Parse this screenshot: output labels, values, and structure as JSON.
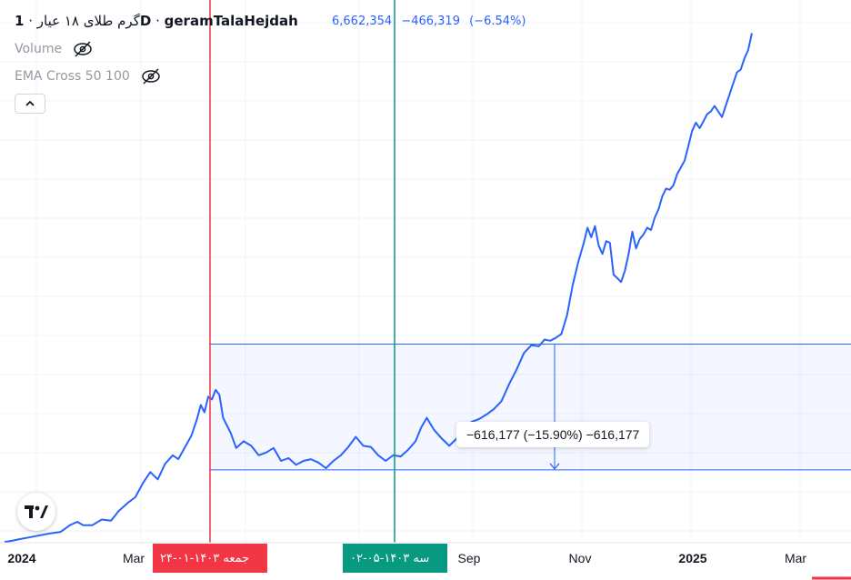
{
  "header": {
    "title_prefix": "گرم طلای ۱۸ عیار",
    "separator": "·",
    "interval": "1D",
    "symbol": "geramTalaHejdah",
    "last_price": "6,662,354",
    "change": "−466,319",
    "change_percent": "(−6.54%)"
  },
  "indicators": [
    {
      "label": "Volume",
      "icon": "eye-off-icon"
    },
    {
      "label": "EMA Cross 50 100",
      "icon": "eye-off-icon"
    }
  ],
  "collapse_icon": "chevron-up-icon",
  "measure": {
    "label": "−616,177 (−15.90%) −616,177"
  },
  "markers": {
    "red_label": "جمعه ۱۴۰۳-۰۱-۲۴",
    "green_label": "سه ۱۴۰۳-۰۵-۰۲",
    "red_color": "#f23645",
    "green_color": "#089981"
  },
  "colors": {
    "series": "#2962ff",
    "measure_fill": "#2962ff",
    "grid": "#f0f3fa"
  },
  "chart_data": {
    "type": "line",
    "title": "",
    "xlabel": "",
    "ylabel": "",
    "x_tick_labels": [
      "2024",
      "Mar",
      "Sep",
      "Nov",
      "2025",
      "Mar"
    ],
    "grid": true,
    "series": [
      {
        "name": "",
        "points": [
          [
            0,
            2.9
          ],
          [
            4,
            2.92
          ],
          [
            8,
            2.95
          ],
          [
            13,
            2.98
          ],
          [
            19,
            3.02
          ],
          [
            24,
            3.05
          ],
          [
            30,
            3.08
          ],
          [
            35,
            3.2
          ],
          [
            39,
            3.26
          ],
          [
            42,
            3.2
          ],
          [
            47,
            3.2
          ],
          [
            52,
            3.3
          ],
          [
            57,
            3.28
          ],
          [
            61,
            3.45
          ],
          [
            66,
            3.6
          ],
          [
            70,
            3.7
          ],
          [
            74,
            3.95
          ],
          [
            78,
            4.15
          ],
          [
            82,
            4.02
          ],
          [
            86,
            4.3
          ],
          [
            90,
            4.45
          ],
          [
            93,
            4.38
          ],
          [
            97,
            4.62
          ],
          [
            100,
            4.8
          ],
          [
            103,
            5.1
          ],
          [
            105,
            5.35
          ],
          [
            107,
            5.22
          ],
          [
            109,
            5.5
          ],
          [
            111,
            5.45
          ],
          [
            113,
            5.62
          ],
          [
            115,
            5.53
          ],
          [
            117,
            5.12
          ],
          [
            121,
            4.85
          ],
          [
            124,
            4.58
          ],
          [
            128,
            4.7
          ],
          [
            132,
            4.62
          ],
          [
            136,
            4.45
          ],
          [
            140,
            4.5
          ],
          [
            144,
            4.58
          ],
          [
            148,
            4.35
          ],
          [
            152,
            4.4
          ],
          [
            156,
            4.28
          ],
          [
            160,
            4.35
          ],
          [
            164,
            4.38
          ],
          [
            168,
            4.32
          ],
          [
            172,
            4.22
          ],
          [
            176,
            4.35
          ],
          [
            180,
            4.45
          ],
          [
            184,
            4.6
          ],
          [
            188,
            4.78
          ],
          [
            192,
            4.62
          ],
          [
            196,
            4.6
          ],
          [
            200,
            4.45
          ],
          [
            204,
            4.35
          ],
          [
            208,
            4.45
          ],
          [
            212,
            4.43
          ],
          [
            216,
            4.55
          ],
          [
            220,
            4.7
          ],
          [
            223,
            4.95
          ],
          [
            226,
            5.12
          ],
          [
            230,
            4.9
          ],
          [
            234,
            4.75
          ],
          [
            238,
            4.62
          ],
          [
            242,
            4.75
          ],
          [
            246,
            4.95
          ],
          [
            250,
            5.05
          ],
          [
            254,
            5.1
          ],
          [
            258,
            5.18
          ],
          [
            262,
            5.28
          ],
          [
            266,
            5.42
          ],
          [
            270,
            5.72
          ],
          [
            274,
            5.98
          ],
          [
            278,
            6.28
          ],
          [
            282,
            6.42
          ],
          [
            286,
            6.4
          ],
          [
            289,
            6.52
          ],
          [
            292,
            6.5
          ],
          [
            295,
            6.55
          ],
          [
            298,
            6.62
          ],
          [
            301,
            6.95
          ],
          [
            304,
            7.48
          ],
          [
            307,
            7.9
          ],
          [
            310,
            8.25
          ],
          [
            312,
            8.52
          ],
          [
            314,
            8.35
          ],
          [
            316,
            8.55
          ],
          [
            318,
            8.2
          ],
          [
            320,
            8.05
          ],
          [
            322,
            8.28
          ],
          [
            324,
            8.25
          ],
          [
            326,
            7.68
          ],
          [
            328,
            7.62
          ],
          [
            330,
            7.55
          ],
          [
            332,
            7.75
          ],
          [
            334,
            8.05
          ],
          [
            336,
            8.45
          ],
          [
            338,
            8.15
          ],
          [
            340,
            8.32
          ],
          [
            342,
            8.4
          ],
          [
            344,
            8.52
          ],
          [
            346,
            8.48
          ],
          [
            348,
            8.7
          ],
          [
            350,
            8.85
          ],
          [
            352,
            9.08
          ],
          [
            354,
            9.22
          ],
          [
            356,
            9.2
          ],
          [
            358,
            9.28
          ],
          [
            360,
            9.48
          ],
          [
            362,
            9.6
          ],
          [
            364,
            9.72
          ],
          [
            366,
            9.98
          ],
          [
            368,
            10.25
          ],
          [
            370,
            10.4
          ],
          [
            372,
            10.3
          ],
          [
            374,
            10.42
          ],
          [
            376,
            10.55
          ],
          [
            378,
            10.6
          ],
          [
            380,
            10.7
          ],
          [
            382,
            10.6
          ],
          [
            384,
            10.5
          ],
          [
            386,
            10.7
          ],
          [
            388,
            10.9
          ],
          [
            390,
            11.1
          ],
          [
            392,
            11.3
          ],
          [
            394,
            11.35
          ],
          [
            396,
            11.55
          ],
          [
            398,
            11.7
          ],
          [
            400,
            12.0
          ]
        ]
      }
    ],
    "measure_range": {
      "from": 6.44,
      "to": 4.19,
      "change": -616177,
      "change_percent": -15.9
    },
    "vertical_markers": [
      "1403-01-24",
      "1403-05-02"
    ]
  }
}
